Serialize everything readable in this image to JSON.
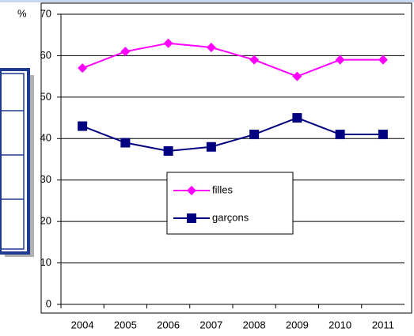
{
  "chart_data": {
    "type": "line",
    "y_label": "%",
    "categories": [
      "2004",
      "2005",
      "2006",
      "2007",
      "2008",
      "2009",
      "2010",
      "2011"
    ],
    "series": [
      {
        "name": "filles",
        "color": "#ff00ff",
        "marker": "diamond",
        "values": [
          57,
          61,
          63,
          62,
          59,
          55,
          59,
          59
        ]
      },
      {
        "name": "garçons",
        "color": "#000080",
        "marker": "square",
        "values": [
          43,
          39,
          37,
          38,
          41,
          45,
          41,
          41
        ]
      }
    ],
    "ylim": [
      0,
      70
    ],
    "yticks": [
      0,
      10,
      20,
      30,
      40,
      50,
      60,
      70
    ],
    "grid": true
  }
}
